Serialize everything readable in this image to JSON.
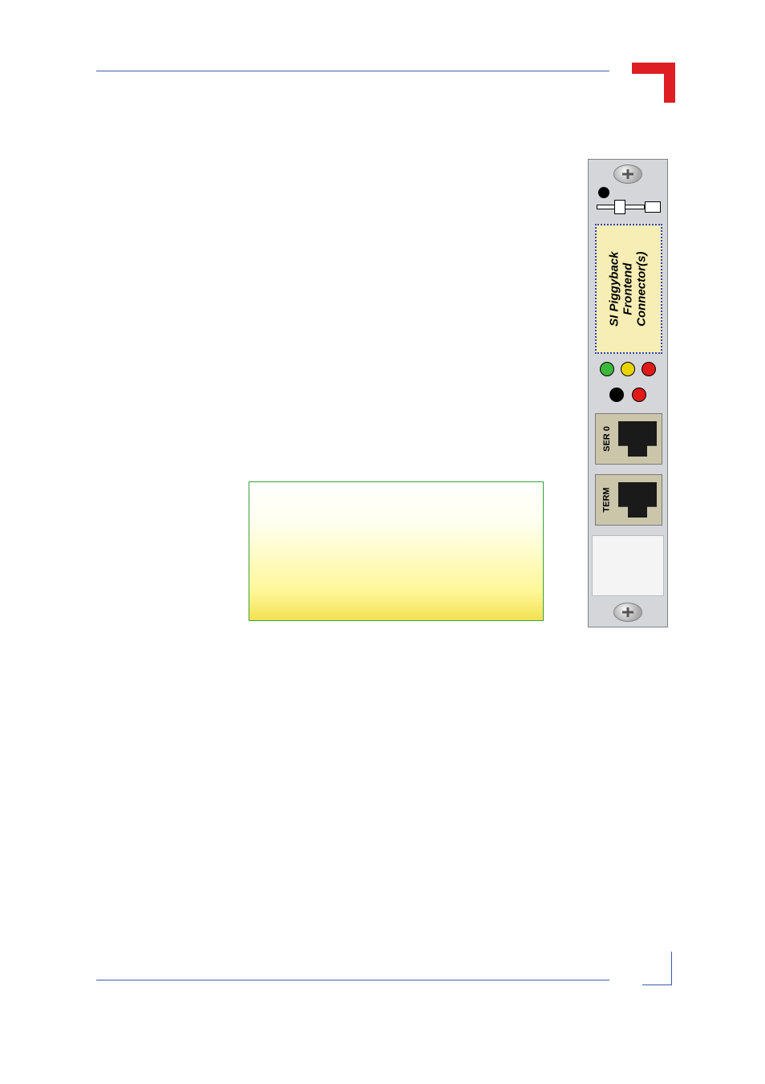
{
  "rules": {
    "top_rule_color": "#3b5db0",
    "bottom_rule_color": "#3b5db0"
  },
  "corner_mark": {
    "color": "#de1e22"
  },
  "front_panel": {
    "background_color": "#d5d6da",
    "border_color": "#808080",
    "piggyback": {
      "line1": "SI Piggyback",
      "line2": "Frontend",
      "line3": "Connector(s)",
      "background_color": "#f6eeb4",
      "border_color": "#2b3ec6",
      "font_style": "italic",
      "font_weight": 700,
      "font_size_pt": 12
    },
    "leds_row1": [
      {
        "name": "led-green",
        "fill": "#3cb83c"
      },
      {
        "name": "led-yellow",
        "fill": "#e8d400"
      },
      {
        "name": "led-red",
        "fill": "#e11a1a"
      }
    ],
    "leds_row2": [
      {
        "name": "led-black",
        "fill": "#000000"
      },
      {
        "name": "led-red-2",
        "fill": "#e11a1a"
      }
    ],
    "ports": {
      "ser0": {
        "label": "SER 0",
        "label_font_size_pt": 9
      },
      "term": {
        "label": "TERM",
        "label_font_size_pt": 9
      },
      "block_background": "#cbc6aa",
      "jack_color": "#1a1a1a"
    },
    "screw": {
      "gradient_inner": "#fafafa",
      "gradient_mid": "#cfcfcf",
      "gradient_outer": "#aaaaaa"
    }
  },
  "note_box": {
    "gradient_top": "#ffffff",
    "gradient_mid": "#fff79a",
    "gradient_bottom": "#f3e253",
    "border_color": "#3aa03a"
  },
  "bottom_corner": {
    "color": "#3b5db0"
  }
}
